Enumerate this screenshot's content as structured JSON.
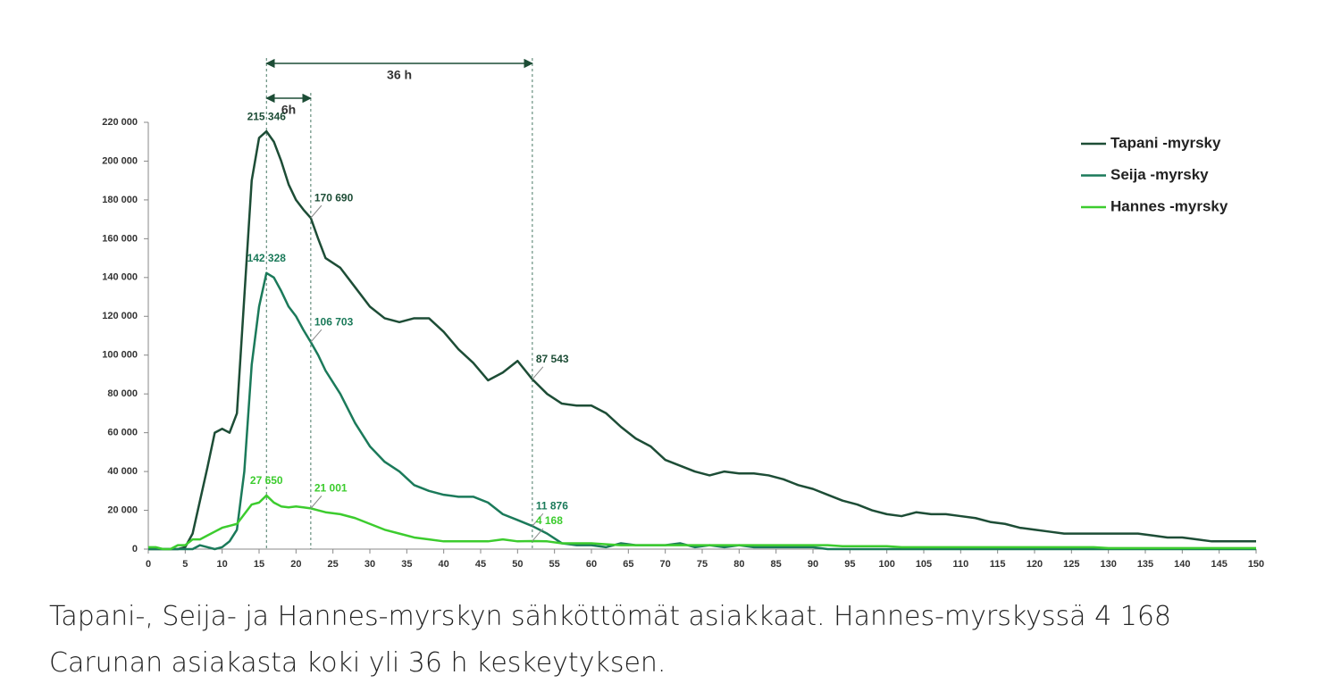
{
  "chart_data": {
    "type": "line",
    "x": [
      0,
      1,
      2,
      3,
      4,
      5,
      6,
      7,
      8,
      9,
      10,
      11,
      12,
      13,
      14,
      15,
      16,
      17,
      18,
      19,
      20,
      21,
      22,
      23,
      24,
      26,
      28,
      30,
      32,
      34,
      36,
      38,
      40,
      42,
      44,
      46,
      48,
      50,
      52,
      54,
      56,
      58,
      60,
      62,
      64,
      66,
      68,
      70,
      72,
      74,
      76,
      78,
      80,
      82,
      84,
      86,
      88,
      90,
      92,
      94,
      96,
      98,
      100,
      102,
      104,
      106,
      108,
      110,
      112,
      114,
      116,
      118,
      120,
      122,
      124,
      126,
      128,
      130,
      132,
      134,
      136,
      138,
      140,
      142,
      144,
      146,
      148,
      150
    ],
    "xlim": [
      0,
      150
    ],
    "xticks": [
      0,
      5,
      10,
      15,
      20,
      25,
      30,
      35,
      40,
      45,
      50,
      55,
      60,
      65,
      70,
      75,
      80,
      85,
      90,
      95,
      100,
      105,
      110,
      115,
      120,
      125,
      130,
      135,
      140,
      145,
      150
    ],
    "ylim": [
      0,
      220000
    ],
    "yticks": [
      {
        "value": 0,
        "label": "0"
      },
      {
        "value": 20000,
        "label": "20 000"
      },
      {
        "value": 40000,
        "label": "40 000"
      },
      {
        "value": 60000,
        "label": "60 000"
      },
      {
        "value": 80000,
        "label": "80 000"
      },
      {
        "value": 100000,
        "label": "100 000"
      },
      {
        "value": 120000,
        "label": "120 000"
      },
      {
        "value": 140000,
        "label": "140 000"
      },
      {
        "value": 160000,
        "label": "160 000"
      },
      {
        "value": 180000,
        "label": "180 000"
      },
      {
        "value": 200000,
        "label": "200 000"
      },
      {
        "value": 220000,
        "label": "220 000"
      }
    ],
    "legend": "top-right",
    "series": [
      {
        "name": "Tapani -myrsky",
        "color": "#1d4d36",
        "values": [
          0,
          0,
          0,
          0,
          0,
          1000,
          8000,
          25000,
          42000,
          60000,
          62000,
          60000,
          70000,
          130000,
          190000,
          212000,
          215346,
          210000,
          200000,
          188000,
          180000,
          175000,
          170690,
          160000,
          150000,
          145000,
          135000,
          125000,
          119000,
          117000,
          119000,
          119000,
          112000,
          103000,
          96000,
          87000,
          91000,
          97000,
          87543,
          80000,
          75000,
          74000,
          74000,
          70000,
          63000,
          57000,
          53000,
          46000,
          43000,
          40000,
          38000,
          40000,
          39000,
          39000,
          38000,
          36000,
          33000,
          31000,
          28000,
          25000,
          23000,
          20000,
          18000,
          17000,
          19000,
          18000,
          18000,
          17000,
          16000,
          14000,
          13000,
          11000,
          10000,
          9000,
          8000,
          8000,
          8000,
          8000,
          8000,
          8000,
          7000,
          6000,
          6000,
          5000,
          4000,
          4000,
          4000,
          4000
        ],
        "annotations": [
          {
            "x": 16,
            "value": 215346,
            "label": "215 346"
          },
          {
            "x": 22,
            "value": 170690,
            "label": "170 690"
          },
          {
            "x": 52,
            "value": 87543,
            "label": "87 543"
          }
        ]
      },
      {
        "name": "Seija -myrsky",
        "color": "#1b7a5a",
        "values": [
          0,
          0,
          0,
          0,
          0,
          0,
          0,
          2000,
          1000,
          0,
          1000,
          4000,
          10000,
          40000,
          95000,
          125000,
          142328,
          140000,
          133000,
          125000,
          120000,
          113000,
          106703,
          100000,
          92000,
          80000,
          65000,
          53000,
          45000,
          40000,
          33000,
          30000,
          28000,
          27000,
          27000,
          24000,
          18000,
          15000,
          11876,
          8000,
          3000,
          2000,
          2000,
          1000,
          3000,
          2000,
          2000,
          2000,
          3000,
          1000,
          2000,
          1000,
          2000,
          1000,
          1000,
          1000,
          1000,
          1000,
          0,
          0,
          0,
          0,
          0,
          0,
          0,
          0,
          0,
          0,
          0,
          0,
          0,
          0,
          0,
          0,
          0,
          0,
          0,
          0,
          0,
          0,
          0,
          0,
          0,
          0,
          0,
          0,
          0,
          0
        ],
        "annotations": [
          {
            "x": 16,
            "value": 142328,
            "label": "142 328"
          },
          {
            "x": 22,
            "value": 106703,
            "label": "106 703"
          },
          {
            "x": 52,
            "value": 11876,
            "label": "11 876"
          }
        ]
      },
      {
        "name": "Hannes -myrsky",
        "color": "#3ccc2e",
        "values": [
          1000,
          1000,
          0,
          0,
          2000,
          2000,
          5000,
          5000,
          7000,
          9000,
          11000,
          12000,
          13000,
          18000,
          23000,
          24000,
          27650,
          24000,
          22000,
          21500,
          22000,
          21500,
          21001,
          20000,
          19000,
          18000,
          16000,
          13000,
          10000,
          8000,
          6000,
          5000,
          4000,
          4000,
          4000,
          4000,
          5000,
          4000,
          4168,
          4000,
          3000,
          3000,
          3000,
          2500,
          2000,
          2000,
          2000,
          2000,
          2000,
          2000,
          2000,
          2000,
          2000,
          2000,
          2000,
          2000,
          2000,
          2000,
          2000,
          1500,
          1500,
          1500,
          1500,
          1000,
          1000,
          1000,
          1000,
          1000,
          1000,
          1000,
          1000,
          1000,
          1000,
          1000,
          1000,
          1000,
          1000,
          500,
          500,
          500,
          500,
          500,
          500,
          500,
          500,
          500,
          500,
          500
        ],
        "annotations": [
          {
            "x": 16,
            "value": 27650,
            "label": "27 650"
          },
          {
            "x": 22,
            "value": 21001,
            "label": "21 001"
          },
          {
            "x": 52,
            "value": 4168,
            "label": "4 168"
          }
        ]
      }
    ],
    "spans": [
      {
        "from": 16,
        "to": 52,
        "label": "36 h"
      },
      {
        "from": 16,
        "to": 22,
        "label": "6h"
      }
    ]
  },
  "caption": "Tapani-, Seija- ja Hannes-myrskyn sähköttömät asiakkaat. Hannes-myrskyssä 4 168 Carunan asiakasta koki yli 36 h keskeytyksen."
}
